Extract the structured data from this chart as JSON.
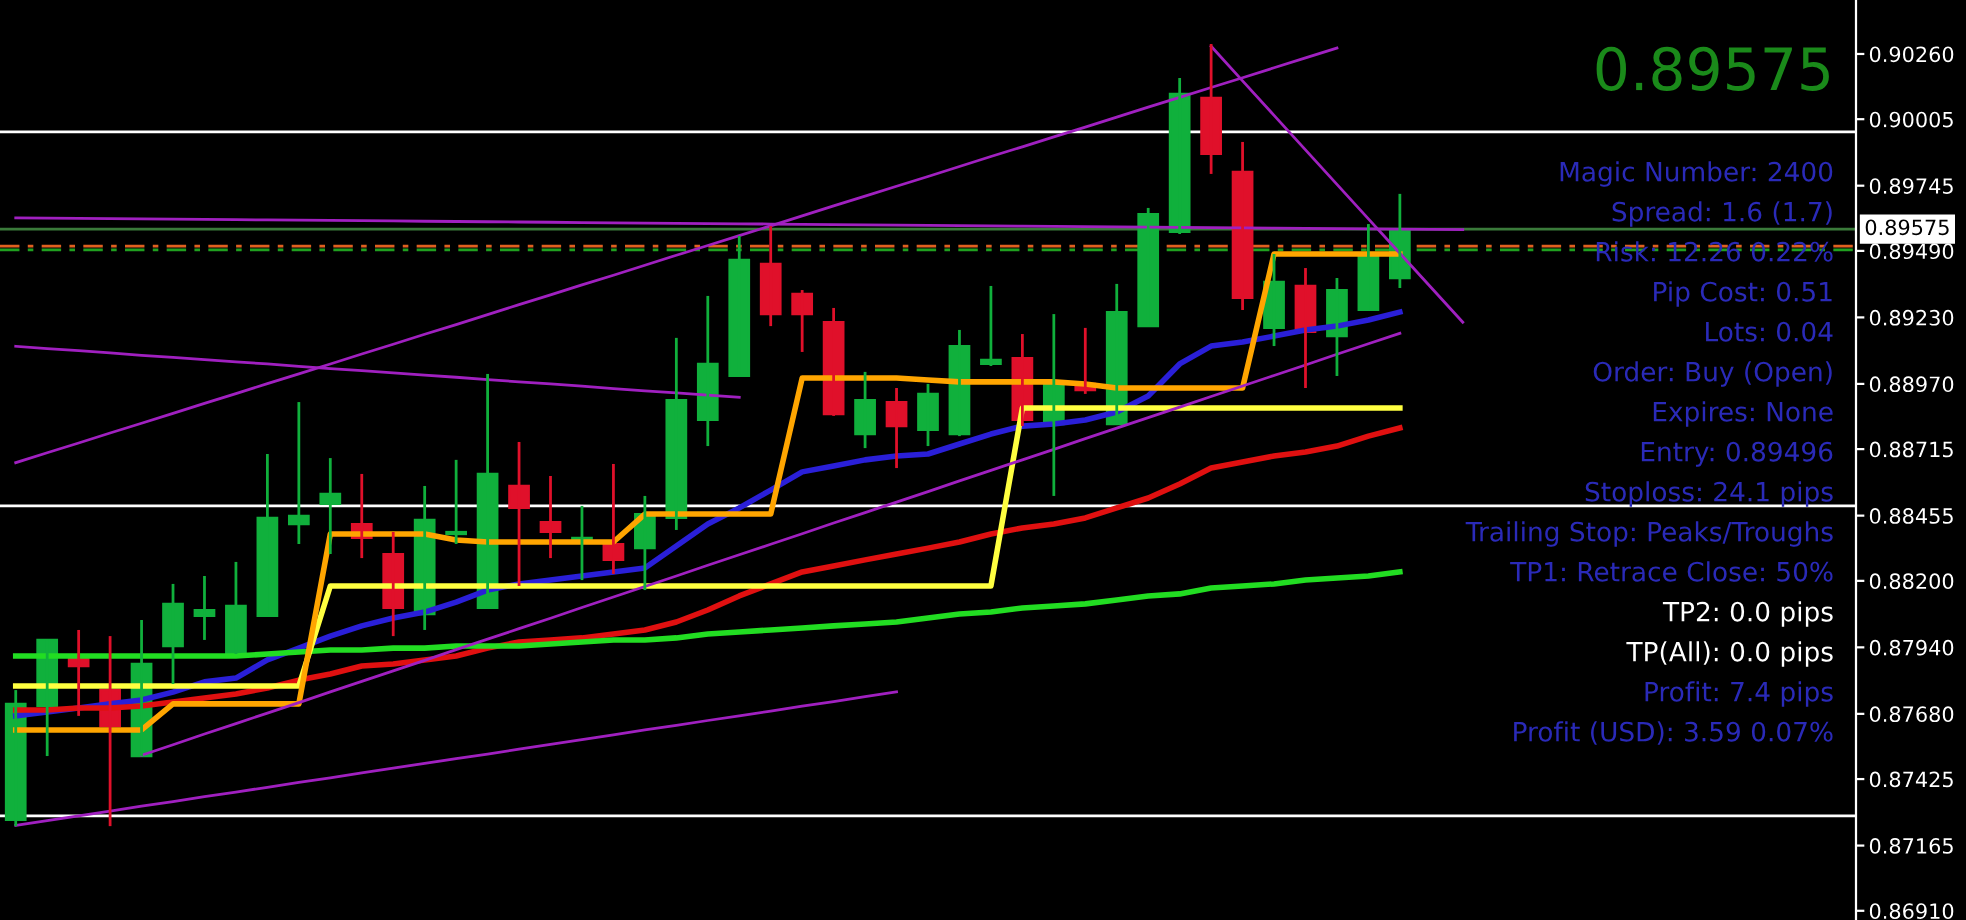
{
  "chart_data": {
    "type": "candlestick",
    "categories": [
      null,
      null,
      null,
      null,
      null,
      null,
      null,
      null,
      null,
      null,
      null,
      null,
      null,
      null,
      null,
      null,
      null,
      null,
      null,
      null,
      null,
      null,
      null,
      null,
      null,
      null,
      null,
      null,
      null,
      null,
      null,
      null,
      null,
      null,
      null,
      null,
      null,
      null,
      null,
      null,
      null,
      null,
      null,
      null,
      null,
      null,
      null,
      null,
      null,
      null,
      null,
      null,
      null,
      null,
      null,
      null,
      null,
      null,
      null
    ],
    "ohlc": [
      [
        0.87265,
        0.87773,
        0.87241,
        0.87719
      ],
      [
        0.87711,
        0.87969,
        0.87515,
        0.87969
      ],
      [
        0.87898,
        0.88008,
        0.87672,
        0.87867
      ],
      [
        0.87773,
        0.87984,
        0.87241,
        0.87632
      ],
      [
        0.87515,
        0.88047,
        0.87515,
        0.87875
      ],
      [
        0.87945,
        0.88188,
        0.87797,
        0.8811
      ],
      [
        0.88063,
        0.88219,
        0.87969,
        0.88086
      ],
      [
        0.87914,
        0.88274,
        0.87914,
        0.88102
      ],
      [
        0.88063,
        0.88696,
        0.88063,
        0.88446
      ],
      [
        0.88422,
        0.88899,
        0.88344,
        0.88454
      ],
      [
        0.88501,
        0.8868,
        0.88305,
        0.8854
      ],
      [
        0.88422,
        0.88618,
        0.88289,
        0.88368
      ],
      [
        0.88305,
        0.88391,
        0.87984,
        0.88094
      ],
      [
        0.8807,
        0.88571,
        0.88008,
        0.88438
      ],
      [
        0.88383,
        0.88673,
        0.88344,
        0.88391
      ],
      [
        0.88094,
        0.89009,
        0.88094,
        0.88618
      ],
      [
        0.88571,
        0.88743,
        0.8818,
        0.88485
      ],
      [
        0.8843,
        0.8861,
        0.88289,
        0.88391
      ],
      [
        0.8836,
        0.88493,
        0.88203,
        0.88368
      ],
      [
        0.88344,
        0.88657,
        0.88227,
        0.88282
      ],
      [
        0.88328,
        0.88532,
        0.88164,
        0.88461
      ],
      [
        0.88446,
        0.8915,
        0.88399,
        0.88907
      ],
      [
        0.88829,
        0.89314,
        0.88727,
        0.89048
      ],
      [
        0.89001,
        0.89548,
        0.89001,
        0.89455
      ],
      [
        0.89439,
        0.89587,
        0.89196,
        0.89243
      ],
      [
        0.89322,
        0.89337,
        0.89095,
        0.89243
      ],
      [
        0.89212,
        0.89267,
        0.88845,
        0.88852
      ],
      [
        0.88774,
        0.89017,
        0.88719,
        0.88907
      ],
      [
        0.88899,
        0.88954,
        0.88641,
        0.88805
      ],
      [
        0.8879,
        0.8897,
        0.88727,
        0.88931
      ],
      [
        0.88774,
        0.89181,
        0.88766,
        0.89118
      ],
      [
        0.89048,
        0.89353,
        0.8904,
        0.89064
      ],
      [
        0.89071,
        0.89165,
        0.88805,
        0.88829
      ],
      [
        0.88813,
        0.89243,
        0.88532,
        0.8897
      ],
      [
        0.8897,
        0.89189,
        0.88931,
        0.88946
      ],
      [
        0.88813,
        0.89361,
        0.88813,
        0.89251
      ],
      [
        0.89196,
        0.89658,
        0.89196,
        0.89634
      ],
      [
        0.89564,
        0.90166,
        0.89556,
        0.90104
      ],
      [
        0.90088,
        0.90299,
        0.89791,
        0.89869
      ],
      [
        0.89799,
        0.89916,
        0.89259,
        0.89306
      ],
      [
        0.89189,
        0.89478,
        0.89118,
        0.89369
      ],
      [
        0.89353,
        0.89423,
        0.88954,
        0.89173
      ],
      [
        0.89157,
        0.89384,
        0.89001,
        0.89337
      ],
      [
        0.89259,
        0.89595,
        0.89259,
        0.89478
      ],
      [
        0.89384,
        0.89713,
        0.89345,
        0.89575
      ],
      null,
      null,
      null,
      null,
      null,
      null,
      null,
      null,
      null,
      null,
      null,
      null,
      null,
      null
    ],
    "colors": [
      "#10b03c",
      "#10b03c",
      "#e0102a",
      "#e0102a",
      "#10b03c",
      "#10b03c",
      "#10b03c",
      "#10b03c",
      "#10b03c",
      "#10b03c",
      "#10b03c",
      "#e0102a",
      "#e0102a",
      "#10b03c",
      "#10b03c",
      "#10b03c",
      "#e0102a",
      "#e0102a",
      "#10b03c",
      "#e0102a",
      "#10b03c",
      "#10b03c",
      "#10b03c",
      "#10b03c",
      "#e0102a",
      "#e0102a",
      "#e0102a",
      "#10b03c",
      "#e0102a",
      "#10b03c",
      "#10b03c",
      "#10b03c",
      "#e0102a",
      "#10b03c",
      "#e0102a",
      "#10b03c",
      "#10b03c",
      "#10b03c",
      "#e0102a",
      "#e0102a",
      "#10b03c",
      "#e0102a",
      "#10b03c",
      "#10b03c",
      "#10b03c",
      null,
      null,
      null,
      null,
      null,
      null,
      null,
      null,
      null,
      null,
      null,
      null,
      null,
      null
    ],
    "series": [
      {
        "type": "line",
        "color": "#2a1fd8",
        "values": [
          0.87672,
          0.87687,
          0.87703,
          0.87719,
          0.87734,
          0.87765,
          0.87805,
          0.8782,
          0.87891,
          0.87937,
          0.87984,
          0.88024,
          0.88055,
          0.88078,
          0.88117,
          0.88164,
          0.88188,
          0.88203,
          0.88219,
          0.88235,
          0.8825,
          0.88336,
          0.88422,
          0.88485,
          0.88555,
          0.88626,
          0.88649,
          0.88673,
          0.88688,
          0.88696,
          0.88735,
          0.88774,
          0.88805,
          0.88813,
          0.88829,
          0.8886,
          0.88923,
          0.89048,
          0.89118,
          0.89134,
          0.89157,
          0.89181,
          0.89196,
          0.8922,
          0.89251,
          null,
          null,
          null,
          null,
          null,
          null,
          null,
          null,
          null,
          null,
          null,
          null,
          null,
          null
        ]
      },
      {
        "type": "line",
        "color": "#e01010",
        "values": [
          0.87695,
          0.87695,
          0.87703,
          0.87703,
          0.87711,
          0.87726,
          0.87742,
          0.87758,
          0.87781,
          0.87812,
          0.87836,
          0.87867,
          0.87875,
          0.87891,
          0.87906,
          0.87937,
          0.87961,
          0.87969,
          0.87977,
          0.87992,
          0.88008,
          0.88039,
          0.88086,
          0.88141,
          0.88188,
          0.88235,
          0.88258,
          0.88282,
          0.88305,
          0.88328,
          0.88352,
          0.88383,
          0.88407,
          0.88422,
          0.88446,
          0.88485,
          0.88524,
          0.88579,
          0.88641,
          0.88665,
          0.88688,
          0.88704,
          0.88727,
          0.88766,
          0.88798,
          null,
          null,
          null,
          null,
          null,
          null,
          null,
          null,
          null,
          null,
          null,
          null,
          null,
          null
        ]
      },
      {
        "type": "line",
        "color": "#22dd22",
        "values": [
          0.87906,
          0.87906,
          0.87906,
          0.87906,
          0.87906,
          0.87906,
          0.87906,
          0.87906,
          0.87914,
          0.87922,
          0.8793,
          0.8793,
          0.87937,
          0.87937,
          0.87945,
          0.87945,
          0.87945,
          0.87953,
          0.87961,
          0.87969,
          0.87969,
          0.87977,
          0.87992,
          0.88,
          0.88008,
          0.88016,
          0.88024,
          0.88031,
          0.88039,
          0.88055,
          0.8807,
          0.88078,
          0.88094,
          0.88102,
          0.8811,
          0.88125,
          0.88141,
          0.88149,
          0.88172,
          0.8818,
          0.88188,
          0.88203,
          0.88211,
          0.88219,
          0.88235,
          null,
          null,
          null,
          null,
          null,
          null,
          null,
          null,
          null,
          null,
          null,
          null,
          null,
          null
        ]
      },
      {
        "type": "line",
        "color": "#ffff40",
        "values": [
          0.87789,
          0.87789,
          0.87789,
          0.87789,
          0.87789,
          0.87789,
          0.87789,
          0.87789,
          0.87789,
          0.87789,
          0.8818,
          0.8818,
          0.8818,
          0.8818,
          0.8818,
          0.8818,
          0.8818,
          0.8818,
          0.8818,
          0.8818,
          0.8818,
          0.8818,
          0.8818,
          0.8818,
          0.8818,
          0.8818,
          0.8818,
          0.8818,
          0.8818,
          0.8818,
          0.8818,
          0.8818,
          0.88876,
          0.88876,
          0.88876,
          0.88876,
          0.88876,
          0.88876,
          0.88876,
          0.88876,
          0.88876,
          0.88876,
          0.88876,
          0.88876,
          0.88876,
          null,
          null,
          null,
          null,
          null,
          null,
          null,
          null,
          null,
          null,
          null,
          null,
          null,
          null
        ]
      },
      {
        "type": "line",
        "color": "#ffa500",
        "values": [
          0.87617,
          0.87617,
          0.87617,
          0.87617,
          0.87617,
          0.87719,
          0.87719,
          0.87719,
          0.87719,
          0.87719,
          0.88383,
          0.88383,
          0.88383,
          0.88383,
          0.8836,
          0.88352,
          0.88352,
          0.88352,
          0.88352,
          0.88352,
          0.88461,
          0.88461,
          0.88461,
          0.88461,
          0.88461,
          0.88993,
          0.88993,
          0.88993,
          0.88993,
          0.88985,
          0.88978,
          0.88978,
          0.88978,
          0.88978,
          0.8897,
          0.88954,
          0.88954,
          0.88954,
          0.88954,
          0.88954,
          0.89478,
          0.89478,
          0.89478,
          0.89478,
          0.89478,
          null,
          null,
          null,
          null,
          null,
          null,
          null,
          null,
          null,
          null,
          null,
          null,
          null,
          null
        ]
      },
      {
        "type": "line",
        "color": "#a020c0",
        "values": [
          0.88662,
          0.88701,
          0.88739,
          0.88778,
          0.88816,
          0.88855,
          0.88894,
          0.88932,
          0.88971,
          0.89009,
          0.89048,
          0.89087,
          0.89125,
          0.89164,
          0.89202,
          0.89241,
          0.8928,
          0.89318,
          0.89357,
          0.89395,
          0.89434,
          0.89473,
          0.89511,
          0.8955,
          0.89588,
          0.89627,
          0.89666,
          0.89704,
          0.89743,
          0.89781,
          0.8982,
          0.89859,
          0.89897,
          0.89936,
          0.89974,
          0.90013,
          0.90052,
          0.9009,
          0.90129,
          0.90167,
          0.90206,
          0.90245,
          0.90283,
          null,
          null,
          null,
          null,
          null,
          null,
          null,
          null,
          null,
          null,
          null,
          null,
          null,
          null,
          null,
          null
        ]
      },
      {
        "type": "line",
        "color": "#a020c0",
        "values": [
          null,
          null,
          null,
          null,
          0.87518,
          0.87559,
          0.87601,
          0.87642,
          0.87683,
          0.87724,
          0.87766,
          0.87807,
          0.87848,
          0.87889,
          0.87931,
          0.87972,
          0.88013,
          0.88054,
          0.88096,
          0.88137,
          0.88178,
          0.88219,
          0.88261,
          0.88302,
          0.88343,
          0.88384,
          0.88426,
          0.88467,
          0.88508,
          0.88549,
          0.88591,
          0.88632,
          0.88673,
          0.88714,
          0.88756,
          0.88797,
          0.88838,
          0.88879,
          0.88921,
          0.88962,
          0.89003,
          0.89044,
          0.89086,
          0.89127,
          0.89168,
          null,
          null,
          null,
          null,
          null,
          null,
          null,
          null,
          null,
          null,
          null,
          null,
          null,
          null
        ]
      },
      {
        "type": "line",
        "color": "#a020c0",
        "values": [
          0.87244,
          0.87263,
          0.87281,
          0.873,
          0.87319,
          0.87337,
          0.87356,
          0.87374,
          0.87393,
          0.87412,
          0.8743,
          0.87449,
          0.87468,
          0.87486,
          0.87505,
          0.87523,
          0.87542,
          0.87561,
          0.87579,
          0.87598,
          0.87617,
          0.87635,
          0.87654,
          0.87672,
          0.87691,
          0.8771,
          0.87728,
          0.87747,
          0.87766,
          null,
          null,
          null,
          null,
          null,
          null,
          null,
          null,
          null,
          null,
          null,
          null,
          null,
          null,
          null,
          null,
          null,
          null,
          null,
          null,
          null,
          null,
          null,
          null,
          null,
          null,
          null,
          null,
          null,
          null
        ]
      },
      {
        "type": "line",
        "color": "#a020c0",
        "values": [
          0.89117,
          0.89108,
          0.891,
          0.89091,
          0.89082,
          0.89074,
          0.89065,
          0.89056,
          0.89048,
          0.89039,
          0.8903,
          0.89022,
          0.89013,
          0.89004,
          0.88996,
          0.88987,
          0.88978,
          0.8897,
          0.88961,
          0.88952,
          0.88943,
          0.88935,
          0.88926,
          0.88918,
          null,
          null,
          null,
          null,
          null,
          null,
          null,
          null,
          null,
          null,
          null,
          null,
          null,
          null,
          null,
          null,
          null,
          null,
          null,
          null,
          null,
          null,
          null,
          null,
          null,
          null,
          null,
          null,
          null,
          null,
          null,
          null,
          null,
          null,
          null
        ]
      },
      {
        "type": "line",
        "color": "#a020c0",
        "values": [
          0.89619,
          0.89618,
          0.89617,
          0.89616,
          0.89615,
          0.89614,
          0.89613,
          0.89612,
          0.89611,
          0.8961,
          0.89609,
          0.89608,
          0.89607,
          0.89606,
          0.89605,
          0.89604,
          0.89603,
          0.89602,
          0.89601,
          0.896,
          0.89599,
          0.89598,
          0.89597,
          0.89596,
          0.89595,
          0.89594,
          0.89593,
          0.89592,
          0.89591,
          0.8959,
          0.89589,
          0.89588,
          0.89587,
          0.89586,
          0.89585,
          0.89584,
          0.89583,
          0.89582,
          0.89581,
          0.8958,
          0.89579,
          0.89578,
          0.89577,
          0.89576,
          0.89575,
          0.89574,
          0.89573,
          null,
          null,
          null,
          null,
          null,
          null,
          null,
          null,
          null,
          null,
          null,
          null
        ]
      },
      {
        "type": "line",
        "color": "#a020c0",
        "values": [
          null,
          null,
          null,
          null,
          null,
          null,
          null,
          null,
          null,
          null,
          null,
          null,
          null,
          null,
          null,
          null,
          null,
          null,
          null,
          null,
          null,
          null,
          null,
          null,
          null,
          null,
          null,
          null,
          null,
          null,
          null,
          null,
          null,
          null,
          null,
          null,
          null,
          null,
          0.9029,
          0.90155,
          0.9002,
          0.89885,
          0.8975,
          0.89615,
          0.89481,
          0.89346,
          0.89211,
          null,
          null,
          null,
          null,
          null,
          null,
          null,
          null,
          null,
          null,
          null,
          null
        ]
      }
    ],
    "ylim": [
      0.86874,
      0.90471
    ],
    "yticks": [
      {
        "value": 0.9026,
        "label": "0.90260"
      },
      0.90005,
      0.89745,
      {
        "value": 0.8949,
        "label": "0.89490"
      },
      {
        "value": 0.8923,
        "label": "0.89230"
      },
      {
        "value": 0.8897,
        "label": "0.88970"
      },
      0.88715,
      0.88455,
      {
        "value": 0.882,
        "label": "0.88200"
      },
      {
        "value": 0.8794,
        "label": "0.87940"
      },
      {
        "value": 0.8768,
        "label": "0.87680"
      },
      0.87425,
      0.87165,
      {
        "value": 0.8691,
        "label": "0.86910"
      }
    ],
    "ref_lines": [
      {
        "axis": "y",
        "value": 0.89955,
        "color": "#ffffff"
      },
      {
        "axis": "y",
        "value": 0.88493,
        "color": "#ffffff"
      },
      {
        "axis": "y",
        "value": 0.87281,
        "color": "#ffffff"
      },
      {
        "axis": "y",
        "value": 0.89509,
        "color": "#e06020",
        "line_style": "dashed"
      },
      {
        "axis": "y",
        "value": 0.89494,
        "color": "#20a020",
        "line_style": "dashed"
      },
      {
        "axis": "y",
        "value": 0.89575,
        "color": "#3a7a3a",
        "label": "0.89575"
      }
    ],
    "annotations": [
      "0.89575",
      "Magic Number: 2400",
      "Spread: 1.6 (1.7)",
      "Risk: 12.26 0.22%",
      "Pip Cost: 0.51",
      "Lots: 0.04",
      "Order: Buy (Open)",
      "Expires: None",
      "Entry: 0.89496",
      "Stoploss: 24.1 pips",
      "Trailing Stop: Peaks/Troughs",
      "TP1: Retrace Close: 50%",
      "TP2: 0.0 pips",
      "TP(All): 0.0 pips",
      "Profit: 7.4 pips",
      "Profit (USD): 3.59 0.07%"
    ],
    "tick_labels": "y",
    "grid": false,
    "legend": false
  }
}
